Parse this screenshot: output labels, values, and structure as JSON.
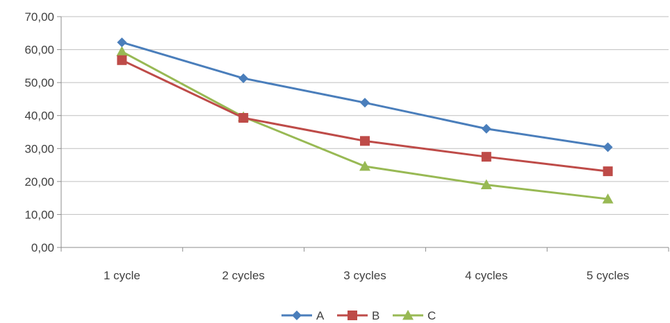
{
  "chart_data": {
    "type": "line",
    "title": "",
    "xlabel": "",
    "ylabel": "",
    "categories": [
      "1 cycle",
      "2 cycles",
      "3 cycles",
      "4 cycles",
      "5 cycles"
    ],
    "ylim": [
      0,
      70
    ],
    "yticks": [
      "0,00",
      "10,00",
      "20,00",
      "30,00",
      "40,00",
      "50,00",
      "60,00",
      "70,00"
    ],
    "grid": true,
    "legend_position": "bottom",
    "series": [
      {
        "name": "A",
        "values": [
          62.2,
          51.3,
          43.9,
          36.0,
          30.4
        ],
        "color": "#4a7ebb",
        "marker": "diamond"
      },
      {
        "name": "B",
        "values": [
          56.8,
          39.3,
          32.3,
          27.5,
          23.1
        ],
        "color": "#be4b48",
        "marker": "square"
      },
      {
        "name": "C",
        "values": [
          59.4,
          39.6,
          24.6,
          19.0,
          14.7
        ],
        "color": "#98b954",
        "marker": "triangle"
      }
    ]
  }
}
